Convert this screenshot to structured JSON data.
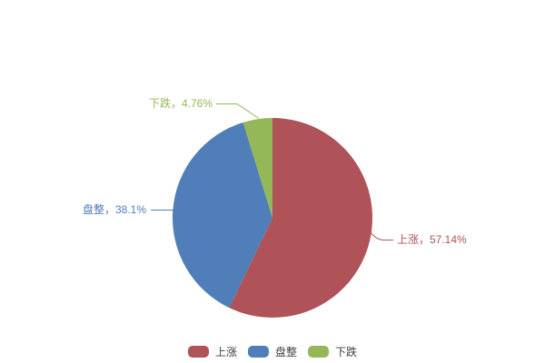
{
  "chart_data": {
    "type": "pie",
    "title": "",
    "categories": [
      "上涨",
      "盘整",
      "下跌"
    ],
    "values": [
      57.14,
      38.1,
      4.76
    ],
    "unit": "%",
    "colors": [
      "#af5358",
      "#4f7eb8",
      "#94b857"
    ],
    "slice_labels": [
      "上涨，57.14%",
      "盘整，38.1%",
      "下跌，4.76%"
    ],
    "start_angle": "top",
    "direction": "clockwise",
    "background": "#ffffff",
    "legend": {
      "position": "bottom",
      "labels": [
        "上涨",
        "盘整",
        "下跌"
      ],
      "text_color": "#404040"
    }
  }
}
